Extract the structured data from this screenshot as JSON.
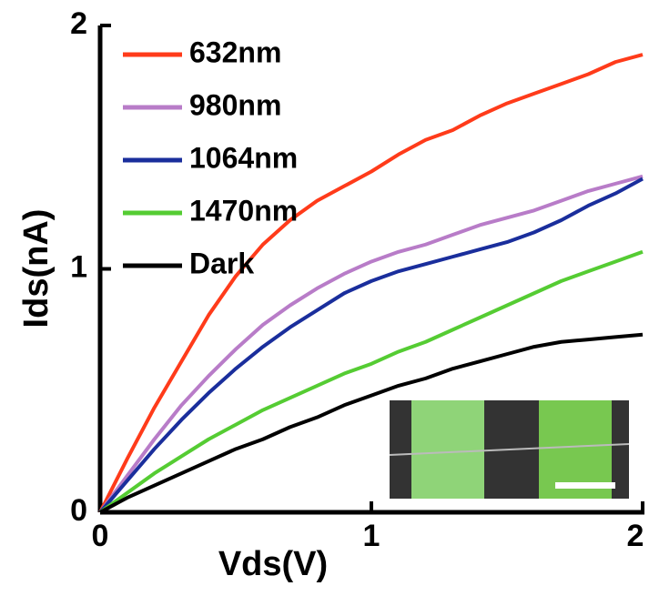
{
  "chart_data": {
    "type": "line",
    "xlabel": "Vds(V)",
    "ylabel": "Ids(nA)",
    "x": [
      0,
      0.1,
      0.2,
      0.3,
      0.4,
      0.5,
      0.6,
      0.7,
      0.8,
      0.9,
      1.0,
      1.1,
      1.2,
      1.3,
      1.4,
      1.5,
      1.6,
      1.7,
      1.8,
      1.9,
      2.0
    ],
    "series": [
      {
        "name": "632nm",
        "color": "#ff3b1a",
        "values": [
          0,
          0.22,
          0.43,
          0.62,
          0.81,
          0.97,
          1.1,
          1.2,
          1.28,
          1.34,
          1.4,
          1.47,
          1.53,
          1.57,
          1.63,
          1.68,
          1.72,
          1.76,
          1.8,
          1.85,
          1.88
        ]
      },
      {
        "name": "980nm",
        "color": "#b87cc8",
        "values": [
          0,
          0.15,
          0.3,
          0.44,
          0.56,
          0.67,
          0.77,
          0.85,
          0.92,
          0.98,
          1.03,
          1.07,
          1.1,
          1.14,
          1.18,
          1.21,
          1.24,
          1.28,
          1.32,
          1.35,
          1.38
        ]
      },
      {
        "name": "1064nm",
        "color": "#1a2e9c",
        "values": [
          0,
          0.13,
          0.26,
          0.38,
          0.49,
          0.59,
          0.68,
          0.76,
          0.83,
          0.9,
          0.95,
          0.99,
          1.02,
          1.05,
          1.08,
          1.11,
          1.15,
          1.2,
          1.26,
          1.31,
          1.37
        ]
      },
      {
        "name": "1470nm",
        "color": "#55cc33",
        "values": [
          0,
          0.08,
          0.16,
          0.23,
          0.3,
          0.36,
          0.42,
          0.47,
          0.52,
          0.57,
          0.61,
          0.66,
          0.7,
          0.75,
          0.8,
          0.85,
          0.9,
          0.95,
          0.99,
          1.03,
          1.07
        ]
      },
      {
        "name": "Dark",
        "color": "#000000",
        "values": [
          0,
          0.06,
          0.11,
          0.16,
          0.21,
          0.26,
          0.3,
          0.35,
          0.39,
          0.44,
          0.48,
          0.52,
          0.55,
          0.59,
          0.62,
          0.65,
          0.68,
          0.7,
          0.71,
          0.72,
          0.73
        ]
      }
    ],
    "xlim": [
      0,
      2
    ],
    "ylim": [
      0,
      2
    ],
    "xticks": [
      0,
      1,
      2
    ],
    "yticks": [
      0,
      1,
      2
    ],
    "legend": "upper-left",
    "grid": false
  }
}
